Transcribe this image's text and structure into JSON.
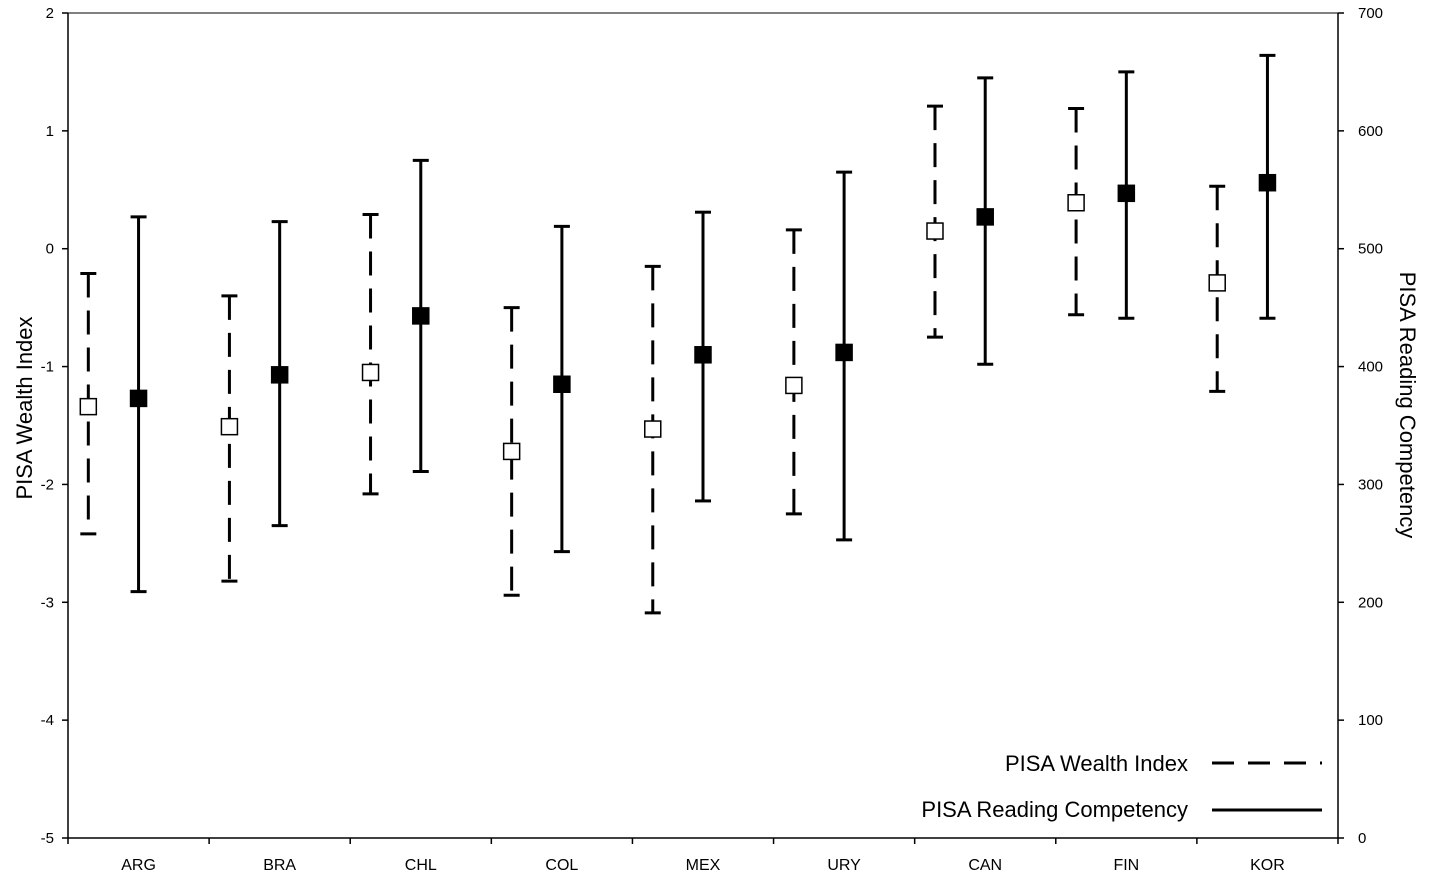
{
  "chart_data": {
    "type": "errorbar",
    "categories": [
      "ARG",
      "BRA",
      "CHL",
      "COL",
      "MEX",
      "URY",
      "CAN",
      "FIN",
      "KOR"
    ],
    "left_axis": {
      "label": "PISA Wealth Index",
      "range": [
        -5,
        2
      ],
      "ticks": [
        "2",
        "1",
        "0",
        "-1",
        "-2",
        "-3",
        "-4",
        "-5"
      ]
    },
    "right_axis": {
      "label": "PISA Reading Competency",
      "range": [
        0,
        700
      ],
      "ticks": [
        "700",
        "600",
        "500",
        "400",
        "300",
        "200",
        "100",
        "0"
      ]
    },
    "series": [
      {
        "name": "PISA Wealth Index",
        "axis": "left",
        "marker": "open-square",
        "line_style": "dashed",
        "mean": [
          -1.34,
          -1.51,
          -1.05,
          -1.72,
          -1.53,
          -1.16,
          0.15,
          0.39,
          -0.29
        ],
        "low": [
          -2.42,
          -2.82,
          -2.08,
          -2.94,
          -3.09,
          -2.25,
          -0.75,
          -0.56,
          -1.21
        ],
        "high": [
          -0.21,
          -0.4,
          0.29,
          -0.5,
          -0.15,
          0.16,
          1.21,
          1.19,
          0.53
        ]
      },
      {
        "name": "PISA Reading Competency",
        "axis": "right",
        "marker": "filled-square",
        "line_style": "solid",
        "mean": [
          373,
          393,
          443,
          385,
          410,
          412,
          527,
          547,
          556
        ],
        "low": [
          209,
          265,
          311,
          243,
          286,
          253,
          402,
          441,
          441
        ],
        "high": [
          527,
          523,
          575,
          519,
          531,
          565,
          645,
          650,
          664
        ]
      }
    ],
    "legend": {
      "position": "bottom-right",
      "items": [
        {
          "label": "PISA Wealth Index",
          "line_style": "dashed"
        },
        {
          "label": "PISA Reading Competency",
          "line_style": "solid"
        }
      ]
    }
  }
}
